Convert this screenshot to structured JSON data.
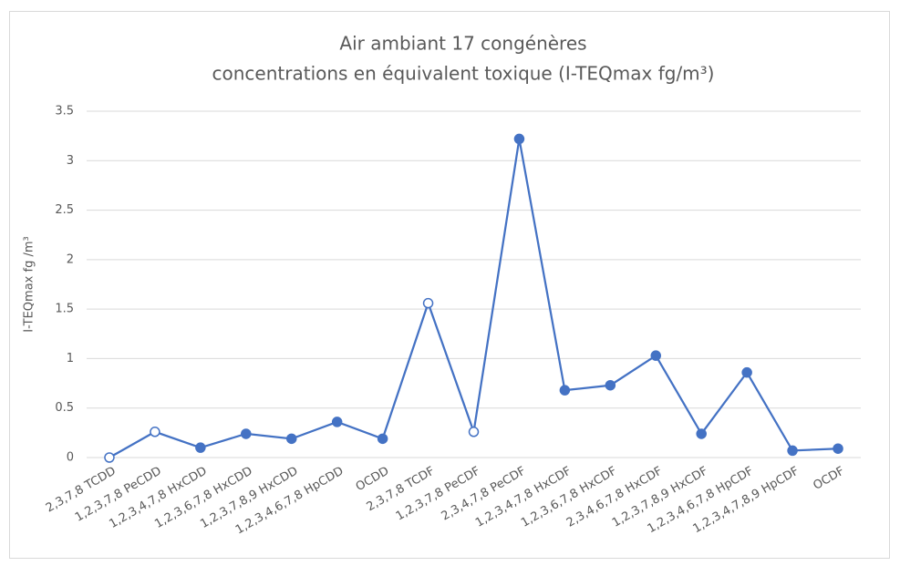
{
  "chart_data": {
    "type": "line",
    "title": [
      "Air ambiant 17 congénères",
      "concentrations en équivalent toxique (I-TEQmax fg/m³)"
    ],
    "y_label": "I-TEQmax fg /m³",
    "categories": [
      "2,3,7,8 TCDD",
      "1,2,3,7,8 PeCDD",
      "1,2,3,4,7,8 HxCDD",
      "1,2,3,6,7,8 HxCDD",
      "1,2,3,7,8,9 HxCDD",
      "1,2,3,4,6,7,8 HpCDD",
      "OCDD",
      "2,3,7,8 TCDF",
      "1,2,3,7,8 PeCDF",
      "2,3,4,7,8 PeCDF",
      "1,2,3,4,7,8 HxCDF",
      "1,2,3,6,7,8 HxCDF",
      "2,3,4,6,7,8 HxCDF",
      "1,2,3,7,8,9 HxCDF",
      "1,2,3,4,6,7,8 HpCDF",
      "1,2,3,4,7,8,9 HpCDF",
      "OCDF"
    ],
    "values": [
      0,
      0.26,
      0.1,
      0.24,
      0.19,
      0.36,
      0.19,
      1.56,
      0.26,
      3.22,
      0.68,
      0.73,
      1.03,
      0.24,
      0.86,
      0.07,
      0.09
    ],
    "hollow": [
      true,
      true,
      false,
      false,
      false,
      false,
      false,
      true,
      true,
      false,
      false,
      false,
      false,
      false,
      false,
      false,
      false
    ],
    "color": "#4472c4",
    "ylim": [
      0,
      3.5
    ],
    "yticks": [
      0,
      0.5,
      1,
      1.5,
      2,
      2.5,
      3,
      3.5
    ],
    "grid": true
  }
}
